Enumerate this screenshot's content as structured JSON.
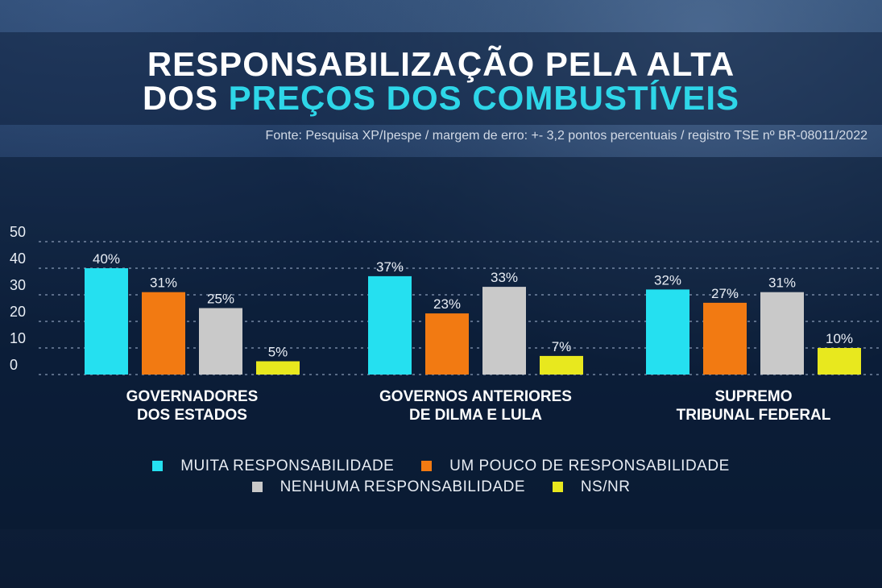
{
  "title": {
    "line1": "RESPONSABILIZAÇÃO PELA ALTA",
    "line2_prefix": "DOS ",
    "line2_accent": "PREÇOS DOS COMBUSTÍVEIS"
  },
  "source": "Fonte: Pesquisa XP/Ipespe / margem de erro: +- 3,2 pontos percentuais / registro TSE nº BR-08011/2022",
  "colors": {
    "muita": "#25e0f0",
    "pouco": "#f27a12",
    "nenhuma": "#c9c9c9",
    "nsnr": "#e8e81e"
  },
  "chart_data": {
    "type": "bar",
    "title": "RESPONSABILIZAÇÃO PELA ALTA DOS PREÇOS DOS COMBUSTÍVEIS",
    "categories": [
      [
        "GOVERNADORES",
        "DOS ESTADOS"
      ],
      [
        "GOVERNOS ANTERIORES",
        "DE DILMA E LULA"
      ],
      [
        "SUPREMO",
        "TRIBUNAL FEDERAL"
      ]
    ],
    "series": [
      {
        "name": "MUITA RESPONSABILIDADE",
        "key": "muita",
        "values": [
          40,
          37,
          32
        ],
        "labels": [
          "40%",
          "37%",
          "32%"
        ]
      },
      {
        "name": "UM POUCO DE RESPONSABILIDADE",
        "key": "pouco",
        "values": [
          31,
          23,
          27
        ],
        "labels": [
          "31%",
          "23%",
          "27%"
        ]
      },
      {
        "name": "NENHUMA RESPONSABILIDADE",
        "key": "nenhuma",
        "values": [
          25,
          33,
          31
        ],
        "labels": [
          "25%",
          "33%",
          "31%"
        ]
      },
      {
        "name": "NS/NR",
        "key": "nsnr",
        "values": [
          5,
          7,
          10
        ],
        "labels": [
          "5%",
          "7%",
          "10%"
        ]
      }
    ],
    "yticks": [
      "0",
      "10",
      "20",
      "30",
      "40",
      "50"
    ],
    "ylim": [
      0,
      50
    ],
    "grid": true,
    "legend_position": "bottom"
  }
}
